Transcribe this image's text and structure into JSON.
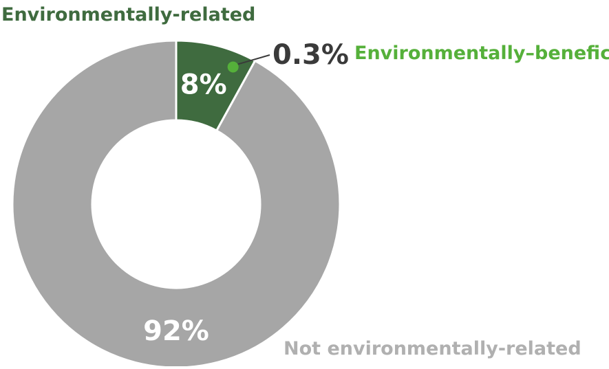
{
  "chart_data": {
    "type": "pie",
    "variant": "donut",
    "slices": [
      {
        "name": "Environmentally-related",
        "value": 8,
        "label": "8%",
        "color": "#3f6b3f",
        "label_color": "#ffffff"
      },
      {
        "name": "Not environmentally-related",
        "value": 92,
        "label": "92%",
        "color": "#a6a6a6",
        "label_color": "#ffffff"
      }
    ],
    "sub_slice": {
      "name": "Environmentally–beneficial",
      "value": 0.3,
      "label": "0.3%",
      "color": "#55b03a",
      "parent": "Environmentally-related"
    },
    "text": {
      "related_title": "Environmentally-related",
      "related_title_color": "#3f6b3f",
      "beneficial_value": "0.3%",
      "beneficial_value_color": "#3a3a3a",
      "beneficial_name": "Environmentally–beneficial",
      "beneficial_name_color": "#55b03a",
      "not_related": "Not environmentally-related",
      "not_related_color": "#b0b0b0"
    }
  }
}
